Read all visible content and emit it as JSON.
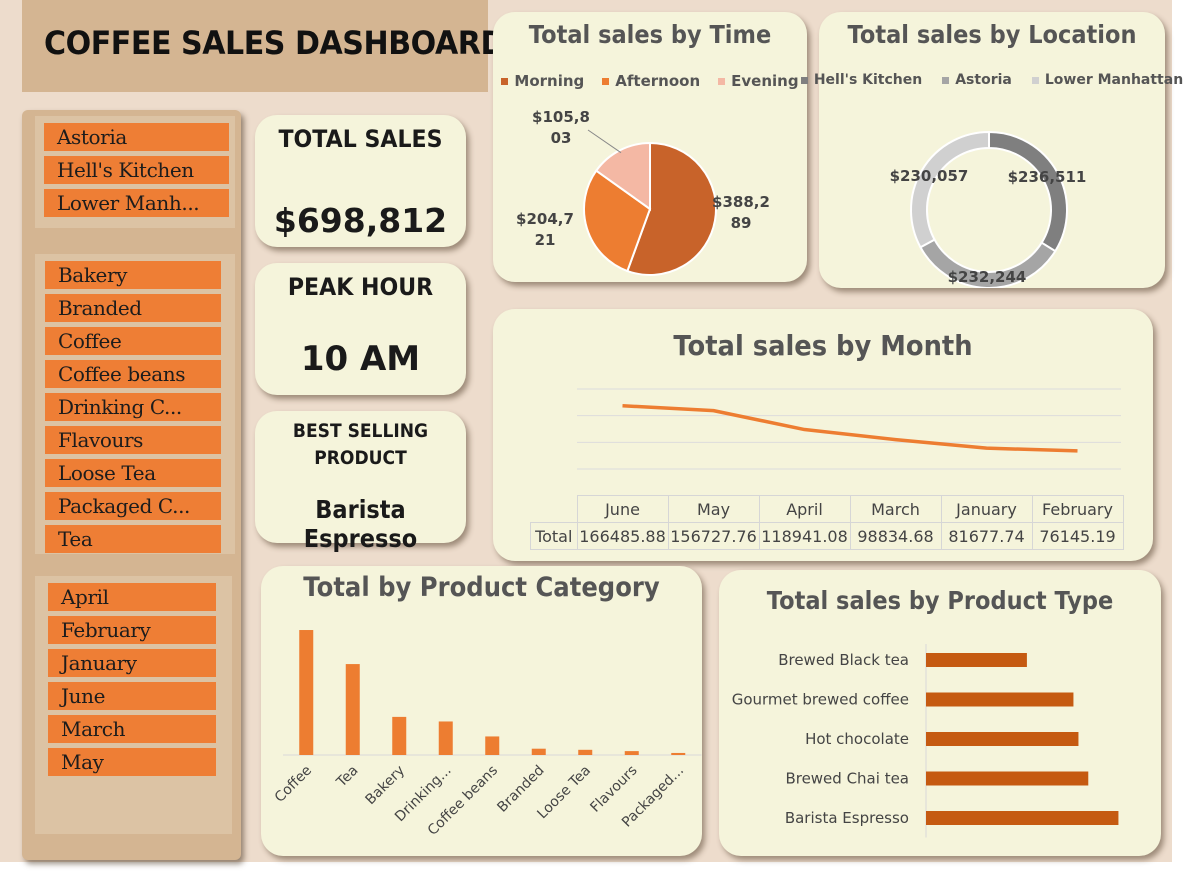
{
  "dashboard": {
    "title": "COFFEE SALES DASHBOARD"
  },
  "slicers": {
    "locations": [
      "Astoria",
      "Hell's Kitchen",
      "Lower Manh..."
    ],
    "categories": [
      "Bakery",
      "Branded",
      "Coffee",
      "Coffee beans",
      "Drinking C...",
      "Flavours",
      "Loose Tea",
      "Packaged C...",
      "Tea"
    ],
    "months": [
      "April",
      "February",
      "January",
      "June",
      "March",
      "May"
    ]
  },
  "kpis": {
    "total_sales": {
      "label": "TOTAL SALES",
      "value": "$698,812"
    },
    "peak_hour": {
      "label": "PEAK HOUR",
      "value": "10 AM"
    },
    "best_selling": {
      "label_line1": "BEST SELLING",
      "label_line2": "PRODUCT",
      "value": "Barista Espresso"
    }
  },
  "colors": {
    "accent_orange": "#ee7e35",
    "dark_orange": "#c55e22",
    "panel_bg": "#f5f4db",
    "slicer_bg": "#d4b592"
  },
  "chart_data": [
    {
      "type": "pie",
      "title": "Total sales by Time",
      "legend": "top",
      "slices": [
        {
          "name": "Morning",
          "value": 388289,
          "label_lines": [
            "$388,2",
            "89"
          ],
          "color": "#c8632a"
        },
        {
          "name": "Afternoon",
          "value": 204721,
          "label_lines": [
            "$204,7",
            "21"
          ],
          "color": "#ed7d31"
        },
        {
          "name": "Evening",
          "value": 105803,
          "label_lines": [
            "$105,8",
            "03"
          ],
          "color": "#f4b8a4"
        }
      ]
    },
    {
      "type": "pie",
      "title": "Total sales by Location",
      "legend": "top",
      "donut": true,
      "slices": [
        {
          "name": "Hell's Kitchen",
          "value": 236511,
          "label": "$236,511",
          "color": "#7f7f7f"
        },
        {
          "name": "Astoria",
          "value": 232244,
          "label": "$232,244",
          "color": "#a5a5a5"
        },
        {
          "name": "Lower Manhattan",
          "value": 230057,
          "label": "$230,057",
          "color": "#d0d0d0"
        }
      ]
    },
    {
      "type": "line",
      "title": "Total sales by Month",
      "categories": [
        "June",
        "May",
        "April",
        "March",
        "January",
        "February"
      ],
      "series": [
        {
          "name": "Total",
          "values": [
            166485.88,
            156727.76,
            118941.08,
            98834.68,
            81677.74,
            76145.19
          ],
          "value_labels": [
            "166485.88",
            "156727.76",
            "118941.08",
            "98834.68",
            "81677.74",
            "76145.19"
          ]
        }
      ],
      "grid": true
    },
    {
      "type": "bar",
      "title": "Total by Product Category",
      "categories": [
        "Coffee",
        "Tea",
        "Bakery",
        "Drinking...",
        "Coffee beans",
        "Branded",
        "Loose Tea",
        "Flavours",
        "Packaged..."
      ],
      "values": [
        269952,
        196405,
        82316,
        72416,
        40085,
        13607,
        11213,
        8409,
        4408
      ],
      "ylim": [
        0,
        300000
      ],
      "color": "#ed7d31"
    },
    {
      "type": "bar",
      "orientation": "horizontal",
      "title": "Total sales by  Product Type",
      "categories": [
        "Brewed Black tea",
        "Gourmet brewed coffee",
        "Hot chocolate",
        "Brewed Chai tea",
        "Barista Espresso"
      ],
      "values": [
        47932,
        70034,
        72416,
        77082,
        91406
      ],
      "xlim": [
        0,
        95000
      ],
      "color": "#c55a11"
    }
  ]
}
